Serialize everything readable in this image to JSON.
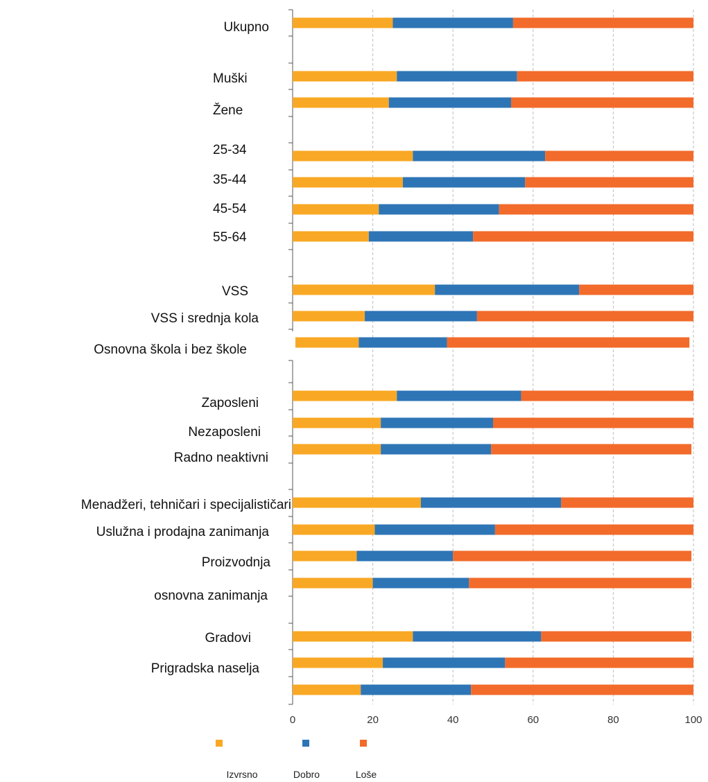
{
  "chart_data": {
    "type": "bar",
    "orientation": "horizontal",
    "stacked": true,
    "title": "",
    "xlabel": "",
    "ylabel": "",
    "xlim": [
      0,
      100
    ],
    "x_ticks": [
      0,
      20,
      40,
      60,
      80,
      100
    ],
    "grid": "vertical dashed",
    "legend_position": "bottom",
    "categories": [
      "Ukupno",
      "Muški",
      "Žene",
      "25-34",
      "35-44",
      "45-54",
      "55-64",
      "VSS",
      "VSS i srednja kola",
      "Osnovna škola i bez škole",
      "Zaposleni",
      "Nezaposleni",
      "Radno neaktivni",
      "Menadžeri, tehničari i specijalističari",
      "Uslužna i prodajna zanimanja",
      "Proizvodnja",
      "osnovna zanimanja",
      "Gradovi",
      "Prigradska naselja",
      ""
    ],
    "series": [
      {
        "name": "Izvrsno",
        "color": "#F9A825",
        "values": [
          25,
          26,
          24,
          30,
          27.5,
          21.5,
          19,
          35.5,
          18,
          16.5,
          26,
          22,
          22,
          32,
          20.5,
          16,
          20,
          30,
          22.5,
          17
        ]
      },
      {
        "name": "Dobro",
        "color": "#2E75B6",
        "values": [
          30,
          30,
          30.5,
          33,
          30.5,
          30,
          26,
          36,
          28,
          22,
          31,
          28,
          27.5,
          35,
          30,
          24,
          24,
          32,
          30.5,
          27.5
        ]
      },
      {
        "name": "Loše",
        "color": "#F26B2A",
        "values": [
          45,
          44,
          45.5,
          37,
          42,
          48.5,
          55,
          28.5,
          54,
          60.5,
          43,
          50,
          50,
          33,
          49.5,
          59.5,
          55.5,
          37.5,
          47,
          55.5
        ]
      }
    ]
  },
  "colors": {
    "grid": "#bdbdbd",
    "axis": "#555555"
  }
}
